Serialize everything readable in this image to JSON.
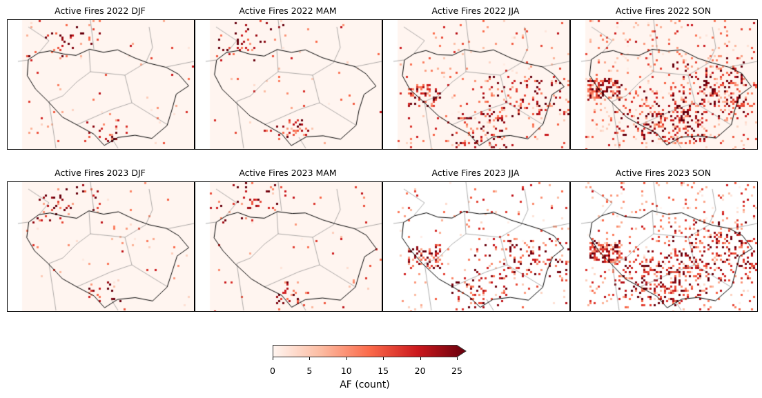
{
  "chart_data": {
    "type": "heatmap",
    "panels": [
      {
        "title": "Active Fires 2022 DJF",
        "intensity": "low"
      },
      {
        "title": "Active Fires 2022 MAM",
        "intensity": "low"
      },
      {
        "title": "Active Fires 2022 JJA",
        "intensity": "medium"
      },
      {
        "title": "Active Fires 2022 SON",
        "intensity": "high"
      },
      {
        "title": "Active Fires 2023 DJF",
        "intensity": "low"
      },
      {
        "title": "Active Fires 2023 MAM",
        "intensity": "low"
      },
      {
        "title": "Active Fires 2023 JJA",
        "intensity": "medium"
      },
      {
        "title": "Active Fires 2023 SON",
        "intensity": "high"
      }
    ],
    "colorbar": {
      "label": "AF (count)",
      "range": [
        0,
        25
      ],
      "ticks": [
        "0",
        "5",
        "10",
        "15",
        "20",
        "25"
      ],
      "extend": "max",
      "colormap": [
        "#fff5f0",
        "#fcbba1",
        "#fb6a4a",
        "#cb181d",
        "#67000d"
      ]
    }
  }
}
